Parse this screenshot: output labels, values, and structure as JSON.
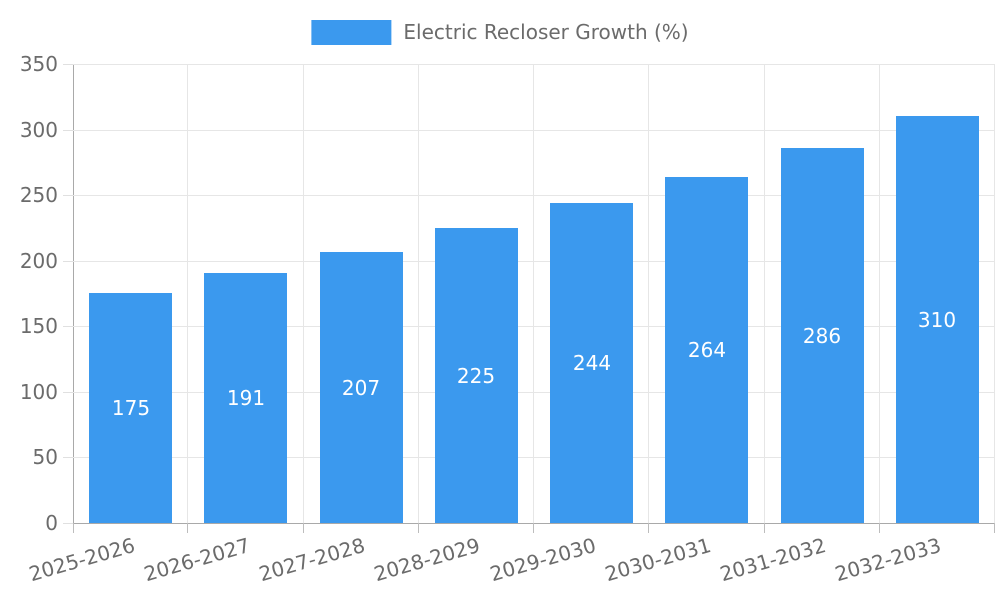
{
  "legend": {
    "label": "Electric Recloser Growth (%)",
    "swatch_color": "#3b99ee"
  },
  "chart_data": {
    "type": "bar",
    "title": "Electric Recloser Growth (%)",
    "categories": [
      "2025-2026",
      "2026-2027",
      "2027-2028",
      "2028-2029",
      "2029-2030",
      "2030-2031",
      "2031-2032",
      "2032-2033"
    ],
    "values": [
      175,
      191,
      207,
      225,
      244,
      264,
      286,
      310
    ],
    "xlabel": "",
    "ylabel": "",
    "ylim": [
      0,
      350
    ],
    "yticks": [
      0,
      50,
      100,
      150,
      200,
      250,
      300,
      350
    ],
    "grid": true,
    "legend_position": "top-center",
    "bar_color": "#3b99ee",
    "value_label_color": "#ffffff",
    "axis_text_color": "#6b6b6b",
    "gridline_color": "#e6e6e6",
    "axis_line_color": "#a9a9a9"
  }
}
